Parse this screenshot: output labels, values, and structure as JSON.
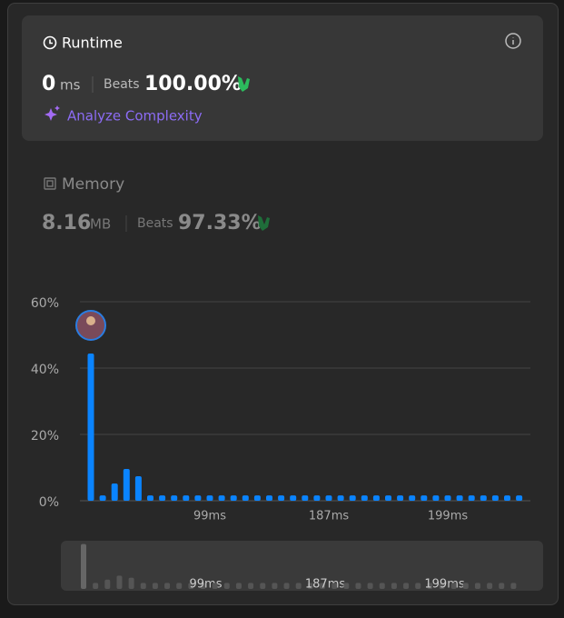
{
  "runtime": {
    "title": "Runtime",
    "value": "0",
    "unit": "ms",
    "beats_label": "Beats",
    "beats": "100.00%",
    "analyze": "Analyze Complexity"
  },
  "memory": {
    "title": "Memory",
    "value": "8.16",
    "unit": "MB",
    "beats_label": "Beats",
    "beats": "97.33%"
  },
  "chart_data": {
    "type": "bar",
    "color": "#0a84ff",
    "categories": [
      null,
      null,
      null,
      null,
      null,
      null,
      null,
      null,
      null,
      null,
      "99ms",
      null,
      null,
      null,
      null,
      null,
      null,
      null,
      null,
      null,
      "187ms",
      null,
      null,
      null,
      null,
      null,
      null,
      null,
      null,
      null,
      "199ms",
      null,
      null,
      null,
      null,
      null,
      null
    ],
    "values": [
      44.4,
      1.6,
      5.2,
      9.6,
      7.4,
      1.6,
      1.6,
      1.6,
      1.6,
      1.6,
      1.6,
      1.6,
      1.6,
      1.6,
      1.6,
      1.6,
      1.6,
      1.6,
      1.6,
      1.6,
      1.6,
      1.6,
      1.6,
      1.6,
      1.6,
      1.6,
      1.6,
      1.6,
      1.6,
      1.6,
      1.6,
      1.6,
      1.6,
      1.6,
      1.6,
      1.6,
      1.6
    ],
    "ylim": [
      0,
      60
    ],
    "yticks": [
      {
        "value": 0,
        "label": "0%"
      },
      {
        "value": 20,
        "label": "20%"
      },
      {
        "value": 40,
        "label": "40%"
      },
      {
        "value": 60,
        "label": "60%"
      }
    ],
    "grid": true
  }
}
